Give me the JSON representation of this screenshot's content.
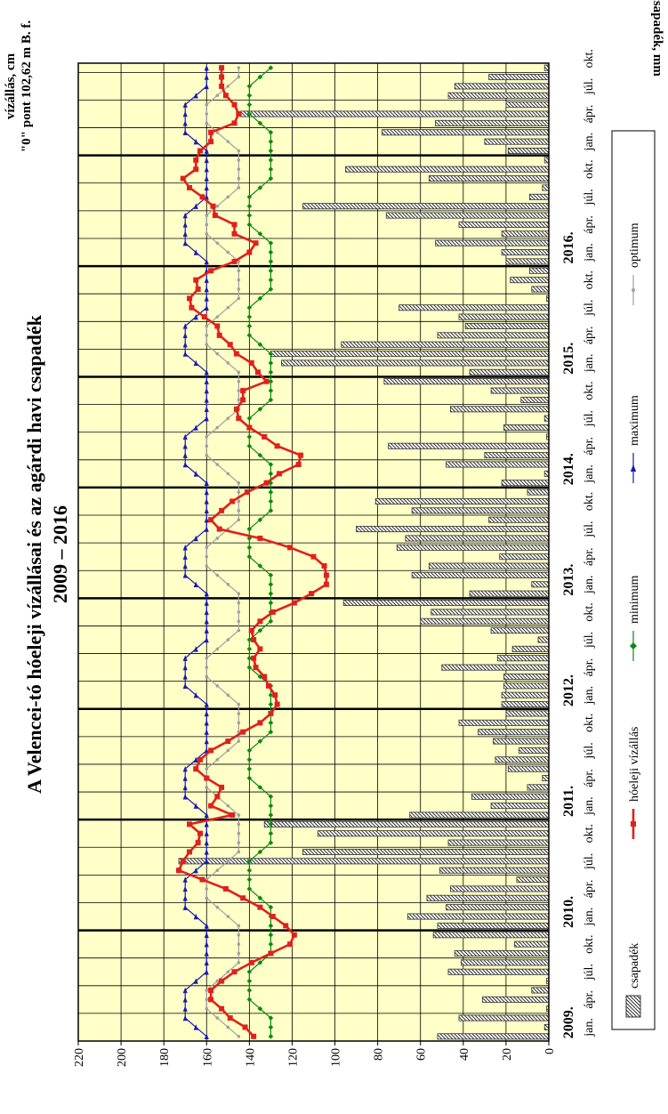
{
  "chart_data": {
    "type": "bar+line",
    "title_line1": "A Velencei-tó hóeleji vízállásai és az agárdi havi csapadék",
    "title_line2": "2009 – 2016",
    "ylabel_left_line1": "vízállás, cm",
    "ylabel_left_line2": "\"0\" pont 102,62 m B. f.",
    "ylabel_right": "csapadék, mm",
    "yticks": [
      0,
      20,
      40,
      60,
      80,
      100,
      120,
      140,
      160,
      180,
      200,
      220
    ],
    "ylim": [
      0,
      220
    ],
    "years": [
      "2009.",
      "2010.",
      "2011.",
      "2012.",
      "2013.",
      "2014.",
      "2015.",
      "2016."
    ],
    "month_labels": [
      "jan.",
      "ápr.",
      "júl.",
      "okt."
    ],
    "legend": [
      "csapadék",
      "hóeleji vízállás",
      "minimum",
      "maximum",
      "optimum"
    ],
    "colors": {
      "background": "#ffffc8",
      "water_level": "#e0201c",
      "minimum": "#0a8a10",
      "maximum": "#1a1ab0",
      "optimum": "#a0a0a0",
      "precip_hatch": "#333333"
    },
    "precipitation": [
      52,
      2,
      42,
      1,
      31,
      8,
      1,
      47,
      41,
      44,
      16,
      54,
      52,
      66,
      48,
      57,
      46,
      15,
      51,
      173,
      115,
      47,
      108,
      133,
      65,
      27,
      36,
      10,
      3,
      19,
      25,
      14,
      26,
      33,
      42,
      20,
      22,
      22,
      21,
      21,
      50,
      24,
      17,
      5,
      27,
      60,
      55,
      96,
      37,
      8,
      64,
      56,
      23,
      71,
      67,
      90,
      28,
      64,
      81,
      10,
      22,
      2,
      48,
      30,
      75,
      1,
      21,
      2,
      46,
      13,
      27,
      77,
      37,
      125,
      130,
      97,
      52,
      39,
      42,
      70,
      1,
      8,
      18,
      9,
      20,
      22,
      53,
      22,
      42,
      76,
      115,
      9,
      3,
      56,
      95,
      2,
      19,
      30,
      78,
      53,
      144,
      20,
      47,
      44,
      28,
      2
    ],
    "water_level": [
      138,
      142,
      149,
      153,
      158,
      158,
      153,
      147,
      139,
      130,
      121,
      119,
      123,
      129,
      135,
      143,
      151,
      162,
      173,
      171,
      168,
      164,
      163,
      168,
      148,
      158,
      155,
      153,
      160,
      165,
      163,
      158,
      150,
      143,
      135,
      130,
      127,
      128,
      131,
      133,
      137,
      138,
      135,
      138,
      139,
      135,
      129,
      119,
      111,
      104,
      104,
      105,
      110,
      121,
      135,
      154,
      158,
      153,
      148,
      141,
      132,
      126,
      117,
      116,
      127,
      133,
      140,
      145,
      146,
      143,
      143,
      132,
      136,
      139,
      146,
      149,
      154,
      155,
      161,
      167,
      168,
      164,
      165,
      158,
      147,
      140,
      137,
      147,
      147,
      156,
      157,
      162,
      168,
      171,
      165,
      165,
      163,
      158,
      158,
      147,
      145,
      147,
      151,
      153,
      153,
      153
    ],
    "minimum": [
      130,
      130,
      130,
      135,
      140,
      140,
      140,
      140,
      135,
      130,
      130,
      130,
      130,
      130,
      130,
      135,
      140,
      140,
      140,
      140,
      135,
      130,
      130,
      130,
      130,
      130,
      130,
      135,
      140,
      140,
      140,
      140,
      135,
      130,
      130,
      130,
      130,
      130,
      130,
      135,
      140,
      140,
      140,
      140,
      135,
      130,
      130,
      130,
      130,
      130,
      130,
      135,
      140,
      140,
      140,
      140,
      135,
      130,
      130,
      130,
      130,
      130,
      130,
      135,
      140,
      140,
      140,
      140,
      135,
      130,
      130,
      130,
      130,
      130,
      130,
      135,
      140,
      140,
      140,
      140,
      135,
      130,
      130,
      130,
      130,
      130,
      130,
      135,
      140,
      140,
      140,
      140,
      135,
      130,
      130,
      130,
      130,
      130,
      130,
      135,
      140,
      140,
      140,
      140,
      135,
      130
    ],
    "maximum": [
      160,
      165,
      170,
      170,
      170,
      170,
      165,
      160,
      160,
      160,
      160,
      160,
      160,
      165,
      170,
      170,
      170,
      170,
      165,
      160,
      160,
      160,
      160,
      160,
      160,
      165,
      170,
      170,
      170,
      170,
      165,
      160,
      160,
      160,
      160,
      160,
      160,
      165,
      170,
      170,
      170,
      170,
      165,
      160,
      160,
      160,
      160,
      160,
      160,
      165,
      170,
      170,
      170,
      170,
      165,
      160,
      160,
      160,
      160,
      160,
      160,
      165,
      170,
      170,
      170,
      170,
      165,
      160,
      160,
      160,
      160,
      160,
      160,
      165,
      170,
      170,
      170,
      170,
      165,
      160,
      160,
      160,
      160,
      160,
      160,
      165,
      170,
      170,
      170,
      170,
      165,
      160,
      160,
      160,
      160,
      160,
      160,
      165,
      170,
      170,
      170,
      170,
      165,
      160,
      160,
      160
    ],
    "optimum": [
      145,
      150,
      155,
      160,
      160,
      160,
      155,
      150,
      145,
      145,
      145,
      145,
      145,
      150,
      155,
      160,
      160,
      160,
      155,
      150,
      145,
      145,
      145,
      145,
      145,
      150,
      155,
      160,
      160,
      160,
      155,
      150,
      145,
      145,
      145,
      145,
      145,
      150,
      155,
      160,
      160,
      160,
      155,
      150,
      145,
      145,
      145,
      145,
      145,
      150,
      155,
      160,
      160,
      160,
      155,
      150,
      145,
      145,
      145,
      145,
      145,
      150,
      155,
      160,
      160,
      160,
      155,
      150,
      145,
      145,
      145,
      145,
      145,
      150,
      155,
      160,
      160,
      160,
      155,
      150,
      145,
      145,
      145,
      145,
      145,
      150,
      155,
      160,
      160,
      160,
      155,
      150,
      145,
      145,
      145,
      145,
      145,
      150,
      155,
      160,
      160,
      160,
      155,
      150,
      145,
      145
    ]
  }
}
